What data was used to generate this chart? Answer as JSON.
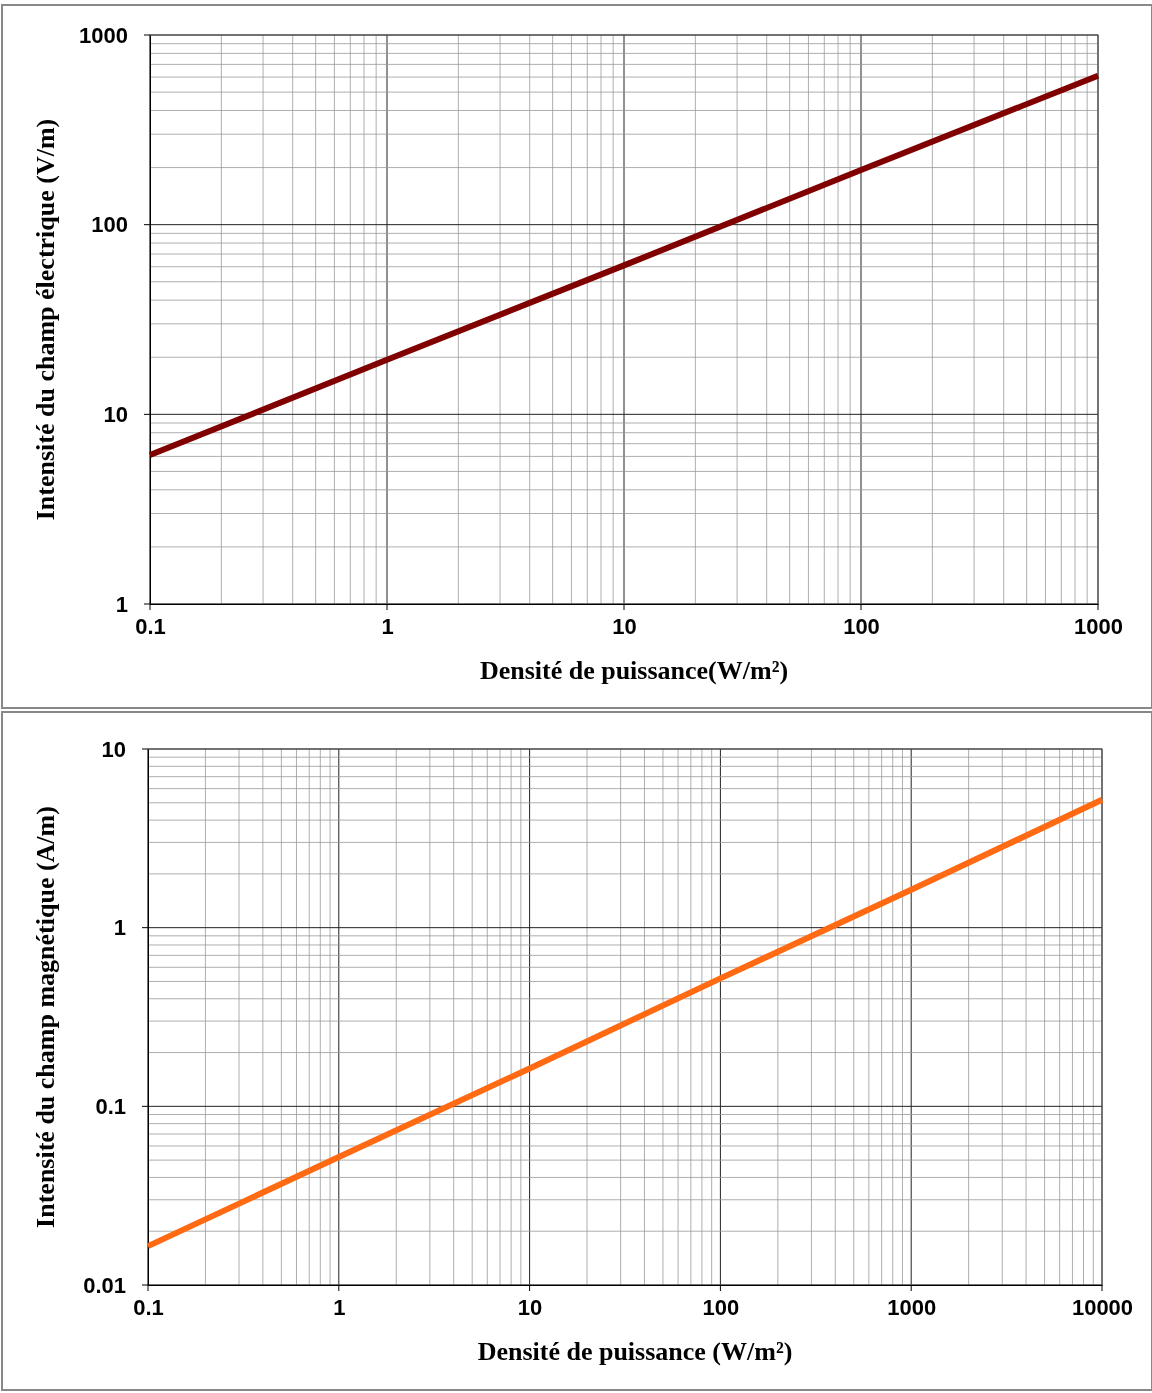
{
  "chart_data": [
    {
      "type": "line",
      "xlabel": "Densité de puissance(W/m²)",
      "ylabel": "Intensité du champ électrique (V/m)",
      "log": "xy",
      "grid": true,
      "marker": "none",
      "line_style": "solid",
      "xlim": [
        0.1,
        1000
      ],
      "ylim": [
        1,
        1000
      ],
      "xticks": [
        0.1,
        {
          "value": 0.2,
          "label": null
        },
        {
          "value": 0.3,
          "label": null
        },
        {
          "value": 0.4,
          "label": null
        },
        {
          "value": 0.5,
          "label": null
        },
        {
          "value": 0.6,
          "label": null
        },
        {
          "value": 0.7,
          "label": null
        },
        {
          "value": 0.8,
          "label": null
        },
        {
          "value": 0.9,
          "label": null
        },
        1,
        {
          "value": 2,
          "label": null
        },
        {
          "value": 3,
          "label": null
        },
        {
          "value": 4,
          "label": null
        },
        {
          "value": 5,
          "label": null
        },
        {
          "value": 6,
          "label": null
        },
        {
          "value": 7,
          "label": null
        },
        {
          "value": 8,
          "label": null
        },
        {
          "value": 9,
          "label": null
        },
        10,
        {
          "value": 20,
          "label": null
        },
        {
          "value": 30,
          "label": null
        },
        {
          "value": 40,
          "label": null
        },
        {
          "value": 50,
          "label": null
        },
        {
          "value": 60,
          "label": null
        },
        {
          "value": 70,
          "label": null
        },
        {
          "value": 80,
          "label": null
        },
        {
          "value": 90,
          "label": null
        },
        100,
        {
          "value": 200,
          "label": null
        },
        {
          "value": 300,
          "label": null
        },
        {
          "value": 400,
          "label": null
        },
        {
          "value": 500,
          "label": null
        },
        {
          "value": 600,
          "label": null
        },
        {
          "value": 700,
          "label": null
        },
        {
          "value": 800,
          "label": null
        },
        {
          "value": 900,
          "label": null
        },
        1000
      ],
      "yticks": [
        1,
        {
          "value": 2,
          "label": null
        },
        {
          "value": 3,
          "label": null
        },
        {
          "value": 4,
          "label": null
        },
        {
          "value": 5,
          "label": null
        },
        {
          "value": 6,
          "label": null
        },
        {
          "value": 7,
          "label": null
        },
        {
          "value": 8,
          "label": null
        },
        {
          "value": 9,
          "label": null
        },
        10,
        {
          "value": 20,
          "label": null
        },
        {
          "value": 30,
          "label": null
        },
        {
          "value": 40,
          "label": null
        },
        {
          "value": 50,
          "label": null
        },
        {
          "value": 60,
          "label": null
        },
        {
          "value": 70,
          "label": null
        },
        {
          "value": 80,
          "label": null
        },
        {
          "value": 90,
          "label": null
        },
        100,
        {
          "value": 200,
          "label": null
        },
        {
          "value": 300,
          "label": null
        },
        {
          "value": 400,
          "label": null
        },
        {
          "value": 500,
          "label": null
        },
        {
          "value": 600,
          "label": null
        },
        {
          "value": 700,
          "label": null
        },
        {
          "value": 800,
          "label": null
        },
        {
          "value": 900,
          "label": null
        },
        1000
      ],
      "x": [
        0.1,
        1,
        10,
        100,
        1000
      ],
      "series": [
        {
          "color": "#800000",
          "values": [
            6.1,
            19.4,
            61,
            194,
            610
          ]
        }
      ]
    },
    {
      "type": "line",
      "xlabel": "Densité de puissance (W/m²)",
      "ylabel": "Intensité du champ magnétique (A/m)",
      "log": "xy",
      "grid": true,
      "marker": "none",
      "line_style": "solid",
      "xlim": [
        0.1,
        10000
      ],
      "ylim": [
        0.01,
        10
      ],
      "xticks": [
        0.1,
        {
          "value": 0.2,
          "label": null
        },
        {
          "value": 0.3,
          "label": null
        },
        {
          "value": 0.4,
          "label": null
        },
        {
          "value": 0.5,
          "label": null
        },
        {
          "value": 0.6,
          "label": null
        },
        {
          "value": 0.7,
          "label": null
        },
        {
          "value": 0.8,
          "label": null
        },
        {
          "value": 0.9,
          "label": null
        },
        1,
        {
          "value": 2,
          "label": null
        },
        {
          "value": 3,
          "label": null
        },
        {
          "value": 4,
          "label": null
        },
        {
          "value": 5,
          "label": null
        },
        {
          "value": 6,
          "label": null
        },
        {
          "value": 7,
          "label": null
        },
        {
          "value": 8,
          "label": null
        },
        {
          "value": 9,
          "label": null
        },
        10,
        {
          "value": 20,
          "label": null
        },
        {
          "value": 30,
          "label": null
        },
        {
          "value": 40,
          "label": null
        },
        {
          "value": 50,
          "label": null
        },
        {
          "value": 60,
          "label": null
        },
        {
          "value": 70,
          "label": null
        },
        {
          "value": 80,
          "label": null
        },
        {
          "value": 90,
          "label": null
        },
        100,
        {
          "value": 200,
          "label": null
        },
        {
          "value": 300,
          "label": null
        },
        {
          "value": 400,
          "label": null
        },
        {
          "value": 500,
          "label": null
        },
        {
          "value": 600,
          "label": null
        },
        {
          "value": 700,
          "label": null
        },
        {
          "value": 800,
          "label": null
        },
        {
          "value": 900,
          "label": null
        },
        1000,
        {
          "value": 2000,
          "label": null
        },
        {
          "value": 3000,
          "label": null
        },
        {
          "value": 4000,
          "label": null
        },
        {
          "value": 5000,
          "label": null
        },
        {
          "value": 6000,
          "label": null
        },
        {
          "value": 7000,
          "label": null
        },
        {
          "value": 8000,
          "label": null
        },
        {
          "value": 9000,
          "label": null
        },
        10000
      ],
      "yticks": [
        0.01,
        {
          "value": 0.02,
          "label": null
        },
        {
          "value": 0.03,
          "label": null
        },
        {
          "value": 0.04,
          "label": null
        },
        {
          "value": 0.05,
          "label": null
        },
        {
          "value": 0.06,
          "label": null
        },
        {
          "value": 0.07,
          "label": null
        },
        {
          "value": 0.08,
          "label": null
        },
        {
          "value": 0.09,
          "label": null
        },
        0.1,
        {
          "value": 0.2,
          "label": null
        },
        {
          "value": 0.3,
          "label": null
        },
        {
          "value": 0.4,
          "label": null
        },
        {
          "value": 0.5,
          "label": null
        },
        {
          "value": 0.6,
          "label": null
        },
        {
          "value": 0.7,
          "label": null
        },
        {
          "value": 0.8,
          "label": null
        },
        {
          "value": 0.9,
          "label": null
        },
        1,
        {
          "value": 2,
          "label": null
        },
        {
          "value": 3,
          "label": null
        },
        {
          "value": 4,
          "label": null
        },
        {
          "value": 5,
          "label": null
        },
        {
          "value": 6,
          "label": null
        },
        {
          "value": 7,
          "label": null
        },
        {
          "value": 8,
          "label": null
        },
        {
          "value": 9,
          "label": null
        },
        10
      ],
      "x": [
        0.1,
        1,
        10,
        100,
        1000,
        10000
      ],
      "series": [
        {
          "color": "#ff6a13",
          "values": [
            0.0165,
            0.052,
            0.163,
            0.52,
            1.63,
            5.2
          ]
        }
      ]
    }
  ]
}
